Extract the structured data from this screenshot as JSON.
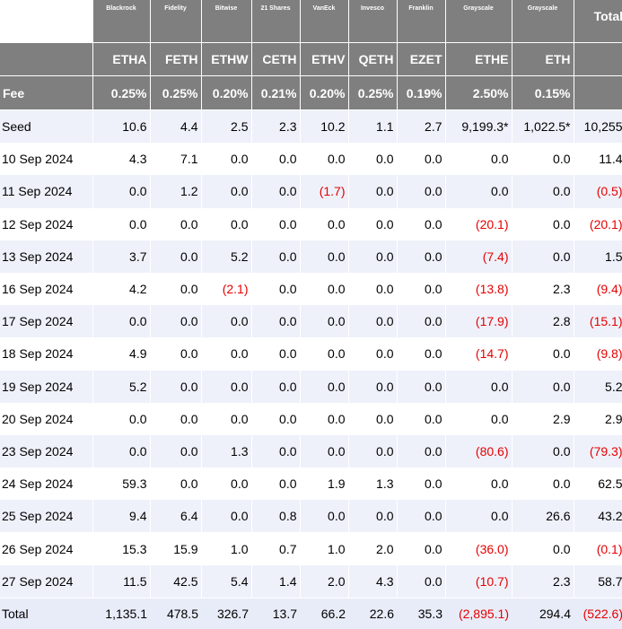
{
  "table": {
    "header": {
      "issuers": [
        "Blackrock",
        "Fidelity",
        "Bitwise",
        "21 Shares",
        "VanEck",
        "Invesco",
        "Franklin",
        "Grayscale",
        "Grayscale"
      ],
      "total_label": "Total",
      "tickers": [
        "ETHA",
        "FETH",
        "ETHW",
        "CETH",
        "ETHV",
        "QETH",
        "EZET",
        "ETHE",
        "ETH"
      ],
      "fee_label": "Fee",
      "fees": [
        "0.25%",
        "0.25%",
        "0.20%",
        "0.21%",
        "0.20%",
        "0.25%",
        "0.19%",
        "2.50%",
        "0.15%"
      ]
    },
    "rows": [
      {
        "label": "Seed",
        "values": [
          "10.6",
          "4.4",
          "2.5",
          "2.3",
          "10.2",
          "1.1",
          "2.7",
          "9,199.3*",
          "1,022.5*",
          "10,255"
        ]
      },
      {
        "label": "10 Sep 2024",
        "values": [
          "4.3",
          "7.1",
          "0.0",
          "0.0",
          "0.0",
          "0.0",
          "0.0",
          "0.0",
          "0.0",
          "11.4"
        ]
      },
      {
        "label": "11 Sep 2024",
        "values": [
          "0.0",
          "1.2",
          "0.0",
          "0.0",
          "(1.7)",
          "0.0",
          "0.0",
          "0.0",
          "0.0",
          "(0.5)"
        ]
      },
      {
        "label": "12 Sep 2024",
        "values": [
          "0.0",
          "0.0",
          "0.0",
          "0.0",
          "0.0",
          "0.0",
          "0.0",
          "(20.1)",
          "0.0",
          "(20.1)"
        ]
      },
      {
        "label": "13 Sep 2024",
        "values": [
          "3.7",
          "0.0",
          "5.2",
          "0.0",
          "0.0",
          "0.0",
          "0.0",
          "(7.4)",
          "0.0",
          "1.5"
        ]
      },
      {
        "label": "16 Sep 2024",
        "values": [
          "4.2",
          "0.0",
          "(2.1)",
          "0.0",
          "0.0",
          "0.0",
          "0.0",
          "(13.8)",
          "2.3",
          "(9.4)"
        ]
      },
      {
        "label": "17 Sep 2024",
        "values": [
          "0.0",
          "0.0",
          "0.0",
          "0.0",
          "0.0",
          "0.0",
          "0.0",
          "(17.9)",
          "2.8",
          "(15.1)"
        ]
      },
      {
        "label": "18 Sep 2024",
        "values": [
          "4.9",
          "0.0",
          "0.0",
          "0.0",
          "0.0",
          "0.0",
          "0.0",
          "(14.7)",
          "0.0",
          "(9.8)"
        ]
      },
      {
        "label": "19 Sep 2024",
        "values": [
          "5.2",
          "0.0",
          "0.0",
          "0.0",
          "0.0",
          "0.0",
          "0.0",
          "0.0",
          "0.0",
          "5.2"
        ]
      },
      {
        "label": "20 Sep 2024",
        "values": [
          "0.0",
          "0.0",
          "0.0",
          "0.0",
          "0.0",
          "0.0",
          "0.0",
          "0.0",
          "2.9",
          "2.9"
        ]
      },
      {
        "label": "23 Sep 2024",
        "values": [
          "0.0",
          "0.0",
          "1.3",
          "0.0",
          "0.0",
          "0.0",
          "0.0",
          "(80.6)",
          "0.0",
          "(79.3)"
        ]
      },
      {
        "label": "24 Sep 2024",
        "values": [
          "59.3",
          "0.0",
          "0.0",
          "0.0",
          "1.9",
          "1.3",
          "0.0",
          "0.0",
          "0.0",
          "62.5"
        ]
      },
      {
        "label": "25 Sep 2024",
        "values": [
          "9.4",
          "6.4",
          "0.0",
          "0.8",
          "0.0",
          "0.0",
          "0.0",
          "0.0",
          "26.6",
          "43.2"
        ]
      },
      {
        "label": "26 Sep 2024",
        "values": [
          "15.3",
          "15.9",
          "1.0",
          "0.7",
          "1.0",
          "2.0",
          "0.0",
          "(36.0)",
          "0.0",
          "(0.1)"
        ]
      },
      {
        "label": "27 Sep 2024",
        "values": [
          "11.5",
          "42.5",
          "5.4",
          "1.4",
          "2.0",
          "4.3",
          "0.0",
          "(10.7)",
          "2.3",
          "58.7"
        ]
      }
    ],
    "total": {
      "label": "Total",
      "values": [
        "1,135.1",
        "478.5",
        "326.7",
        "13.7",
        "66.2",
        "22.6",
        "35.3",
        "(2,895.1)",
        "294.4",
        "(522.6)"
      ]
    },
    "colors": {
      "header_bg": "#7f7f7f",
      "header_text": "#ffffff",
      "negative": "#e60000",
      "band": "#eef1fa"
    }
  }
}
